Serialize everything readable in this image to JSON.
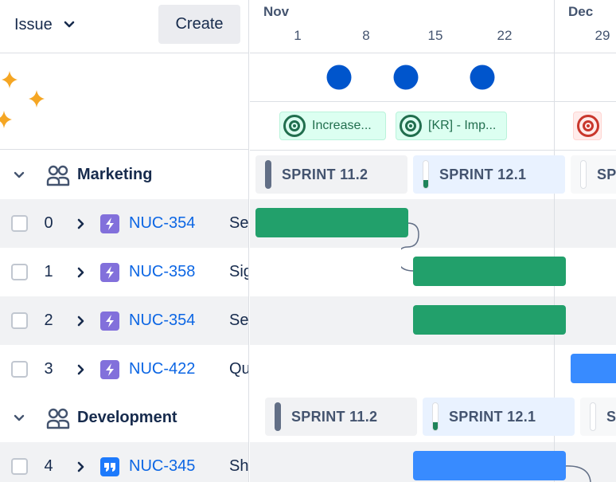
{
  "header": {
    "issue_dropdown_label": "Issue",
    "create_label": "Create"
  },
  "groups": [
    {
      "name": "Marketing"
    },
    {
      "name": "Development"
    }
  ],
  "issues": [
    {
      "num": "0",
      "key": "NUC-354",
      "summary": "Se",
      "type": "epic"
    },
    {
      "num": "1",
      "key": "NUC-358",
      "summary": "Sig",
      "type": "epic"
    },
    {
      "num": "2",
      "key": "NUC-354",
      "summary": "Se",
      "type": "epic"
    },
    {
      "num": "3",
      "key": "NUC-422",
      "summary": "Qu",
      "type": "epic"
    },
    {
      "num": "4",
      "key": "NUC-345",
      "summary": "Sh",
      "type": "story"
    }
  ],
  "timeline": {
    "months": [
      {
        "label": "Nov"
      },
      {
        "label": "Dec"
      }
    ],
    "days": [
      "1",
      "8",
      "15",
      "22",
      "29"
    ]
  },
  "goals": [
    {
      "label": "Increase...",
      "status": "on-track"
    },
    {
      "label": "[KR] - Imp...",
      "status": "on-track"
    },
    {
      "label": "",
      "status": "off-track"
    }
  ],
  "sprints": {
    "marketing": [
      {
        "label": "SPRINT 11.2",
        "state": "done"
      },
      {
        "label": "SPRINT 12.1",
        "state": "active",
        "progress": 0.3
      },
      {
        "label": "SP",
        "state": "future"
      }
    ],
    "development": [
      {
        "label": "SPRINT 11.2",
        "state": "done"
      },
      {
        "label": "SPRINT 12.1",
        "state": "active",
        "progress": 0.3
      },
      {
        "label": "S",
        "state": "future"
      }
    ]
  },
  "colors": {
    "epic": "#8270db",
    "story": "#1d7afc",
    "link": "#0c66e4",
    "milestone": "#0055cc",
    "bar_green": "#22a06b",
    "bar_blue": "#388bff",
    "sparkle": "#f5a623"
  }
}
